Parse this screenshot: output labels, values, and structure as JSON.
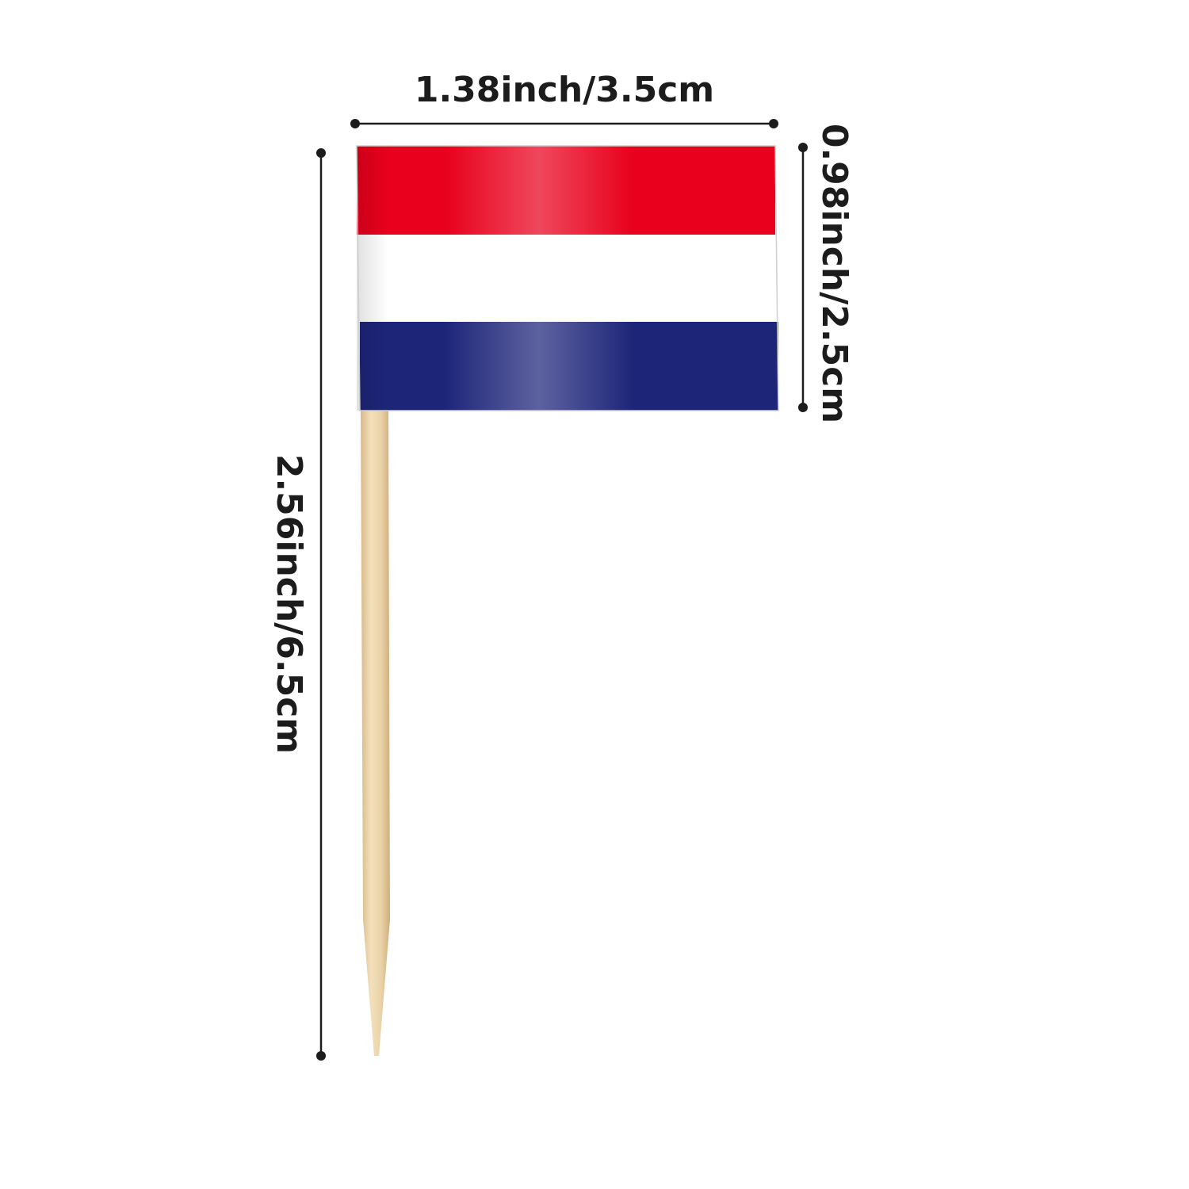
{
  "dimensions": {
    "width_label": "1.38inch/3.5cm",
    "flag_height_label": "0.98inch/2.5cm",
    "total_height_label": "2.56inch/6.5cm"
  },
  "flag": {
    "stripe_colors": [
      "#e8001c",
      "#ffffff",
      "#1d2579"
    ]
  },
  "toothpick": {
    "color": "#e8cfa2"
  },
  "annotation_color": "#1c1c1c"
}
